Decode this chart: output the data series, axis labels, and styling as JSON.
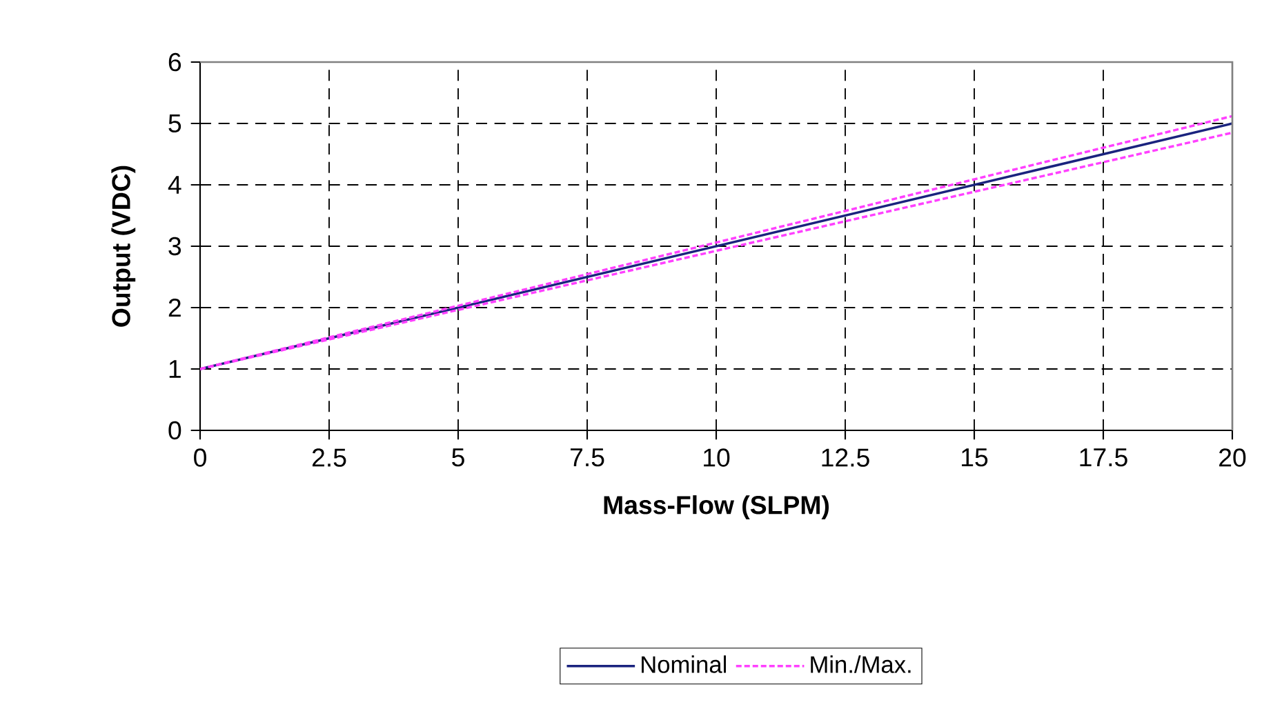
{
  "chart_data": {
    "type": "line",
    "xlabel": "Mass-Flow (SLPM)",
    "ylabel": "Output (VDC)",
    "x": [
      0,
      20
    ],
    "series": [
      {
        "name": "Nominal",
        "color": "#1a237e",
        "values": [
          1,
          5
        ],
        "line_style": "solid"
      },
      {
        "name": "Min./Max.",
        "color": "#ff40ff",
        "values": [
          1,
          5.12
        ],
        "line_style": "dashed"
      },
      {
        "color": "#ff40ff",
        "values": [
          1,
          4.85
        ],
        "line_style": "dashed"
      }
    ],
    "xlim": [
      0,
      20
    ],
    "ylim": [
      0,
      6
    ],
    "xticks": [
      0,
      2.5,
      5,
      7.5,
      10,
      12.5,
      15,
      17.5,
      20
    ],
    "yticks": [
      0,
      1,
      2,
      3,
      4,
      5,
      6
    ],
    "grid": true,
    "legend": "bottom",
    "marker": "none"
  }
}
